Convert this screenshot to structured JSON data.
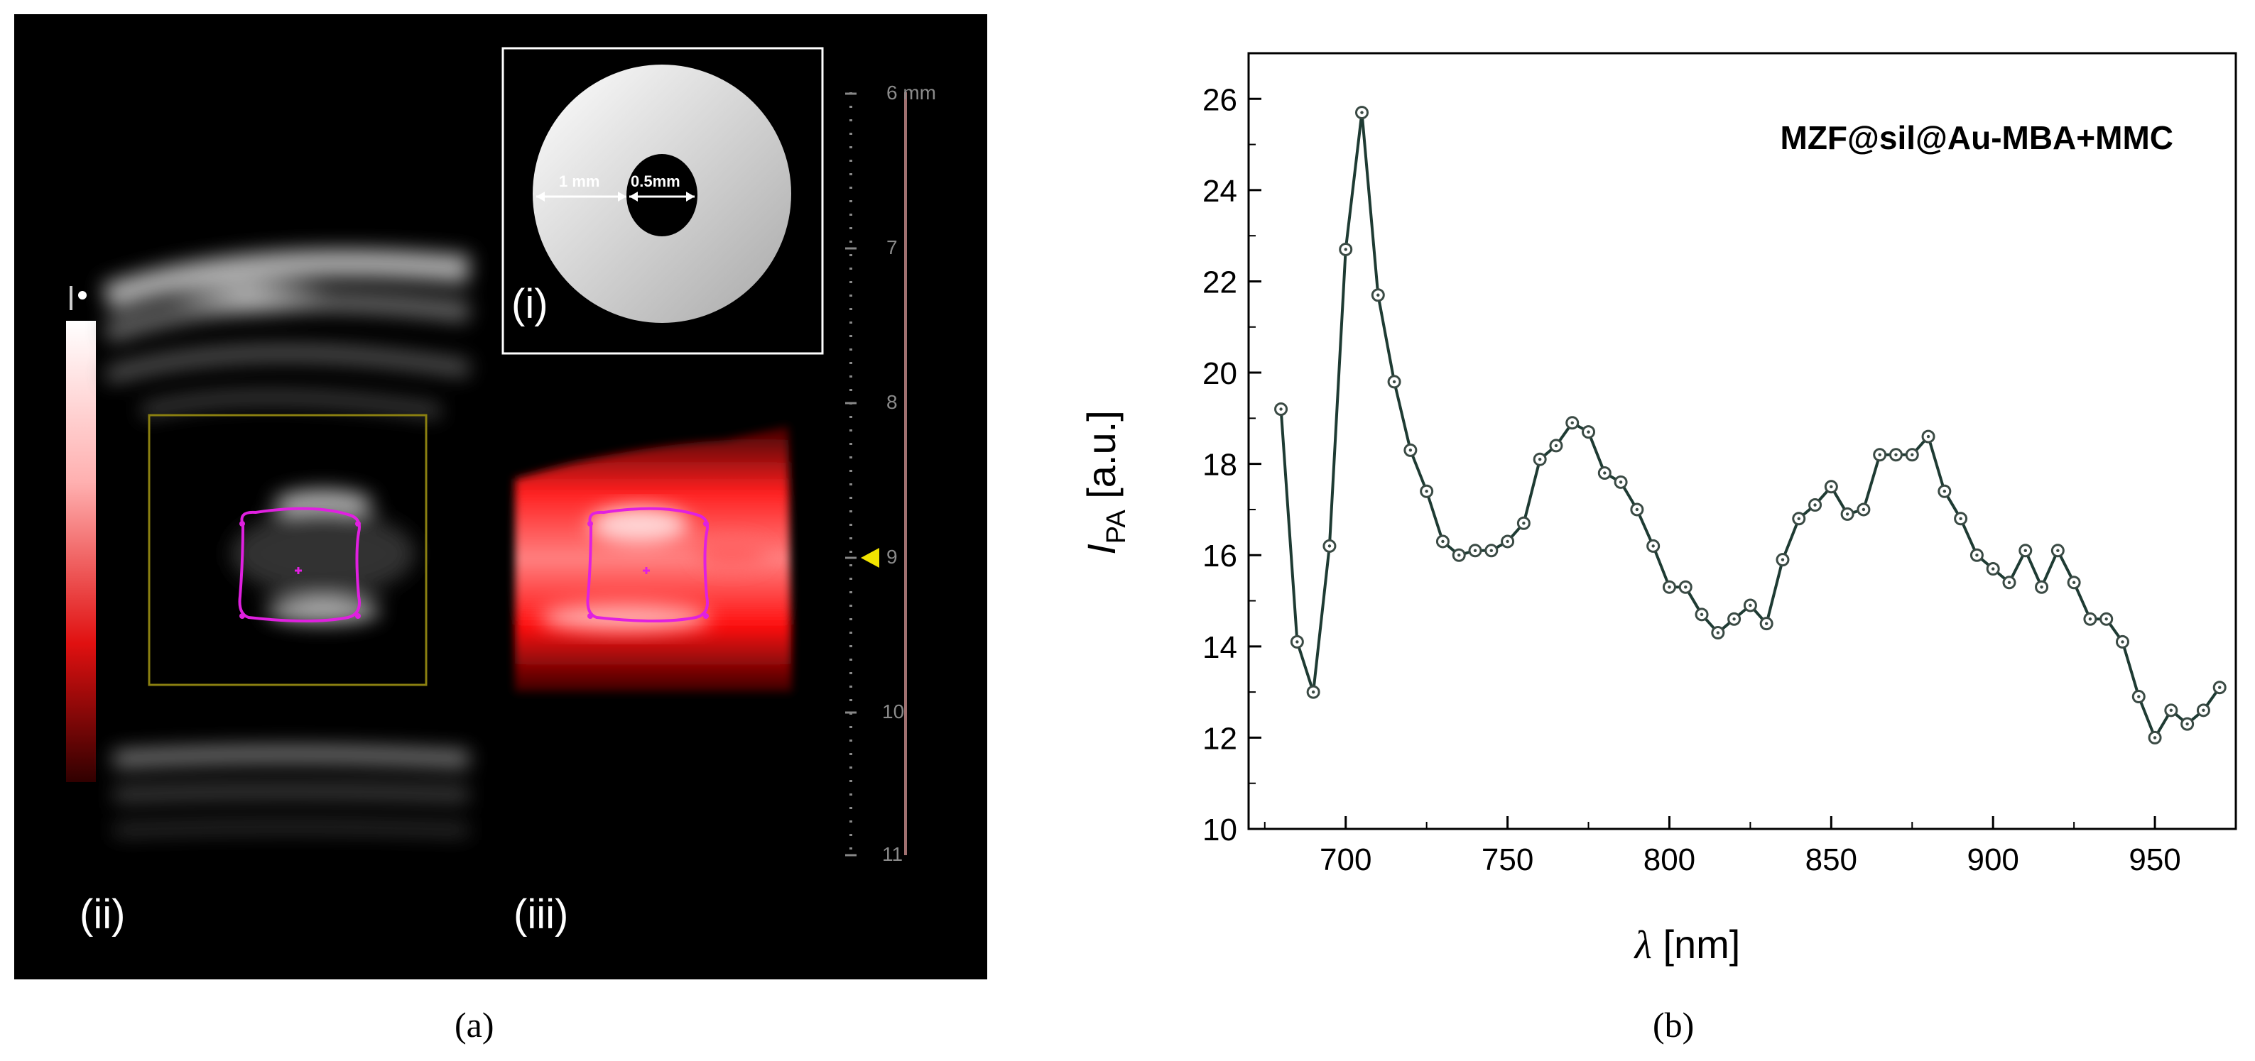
{
  "panel_a": {
    "caption": "(a)",
    "inset_i_label": "(i)",
    "inset_ii_label": "(ii)",
    "inset_iii_label": "(iii)",
    "phantom": {
      "outer_label": "1 mm",
      "inner_label": "0.5mm"
    },
    "depth_ruler": {
      "unit": "mm",
      "ticks": [
        "6",
        "7",
        "8",
        "9",
        "10",
        "11"
      ],
      "marker_value": "9",
      "marker_color": "#f2e400"
    },
    "colors": {
      "roi_box": "#8a7f10",
      "roi_contour": "#e020e0",
      "pa_signal": "#ff1a1a"
    }
  },
  "panel_b": {
    "caption": "(b)",
    "chart_data": {
      "type": "line",
      "title": "",
      "annotation": "MZF@sil@Au-MBA+MMC",
      "xlabel_symbol": "λ",
      "xlabel_unit": "[nm]",
      "ylabel_symbol": "I",
      "ylabel_subscript": "PA",
      "ylabel_unit": "[a.u.]",
      "xlim": [
        670,
        975
      ],
      "ylim": [
        10,
        27
      ],
      "xticks": [
        700,
        750,
        800,
        850,
        900,
        950
      ],
      "yticks": [
        10,
        12,
        14,
        16,
        18,
        20,
        22,
        24,
        26
      ],
      "grid": false,
      "line_color": "#1e3b33",
      "marker": "open-circle",
      "series": [
        {
          "x": [
            680,
            685,
            690,
            695,
            700,
            705,
            710,
            715,
            720,
            725,
            730,
            735,
            740,
            745,
            750,
            755,
            760,
            765,
            770,
            775,
            780,
            785,
            790,
            795,
            800,
            805,
            810,
            815,
            820,
            825,
            830,
            835,
            840,
            845,
            850,
            855,
            860,
            865,
            870,
            875,
            880,
            885,
            890,
            895,
            900,
            905,
            910,
            915,
            920,
            925,
            930,
            935,
            940,
            945,
            950,
            955,
            960,
            965,
            970
          ],
          "y": [
            19.2,
            14.1,
            13.0,
            16.2,
            22.7,
            25.7,
            21.7,
            19.8,
            18.3,
            17.4,
            16.3,
            16.0,
            16.1,
            16.1,
            16.3,
            16.7,
            18.1,
            18.4,
            18.9,
            18.7,
            17.8,
            17.6,
            17.0,
            16.2,
            15.3,
            15.3,
            14.7,
            14.3,
            14.6,
            14.9,
            14.5,
            15.9,
            16.8,
            17.1,
            17.5,
            16.9,
            17.0,
            18.2,
            18.2,
            18.2,
            18.6,
            17.4,
            16.8,
            16.0,
            15.7,
            15.4,
            16.1,
            15.3,
            16.1,
            15.4,
            14.6,
            14.6,
            14.1,
            12.9,
            12.0,
            12.6,
            12.3,
            12.6,
            13.1
          ]
        }
      ]
    }
  }
}
